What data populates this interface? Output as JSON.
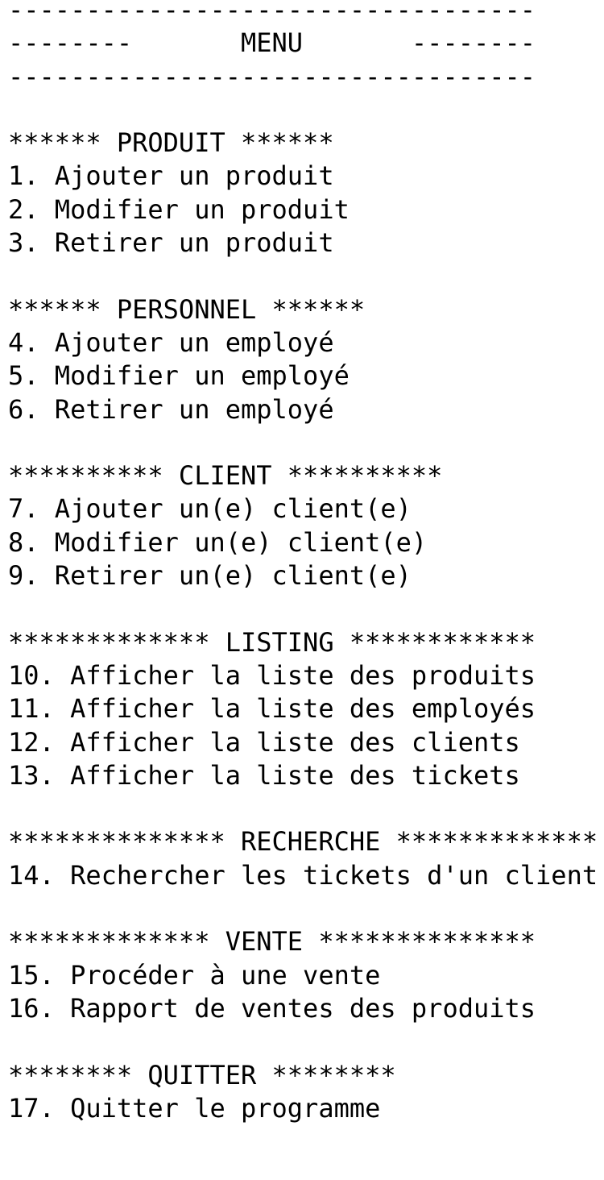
{
  "header": {
    "top_rule": "----------------------------------",
    "title_line": "--------       MENU       --------",
    "bottom_rule": "----------------------------------"
  },
  "sections": [
    {
      "title": "****** PRODUIT ******",
      "items": [
        "1. Ajouter un produit",
        "2. Modifier un produit",
        "3. Retirer un produit"
      ]
    },
    {
      "title": "****** PERSONNEL ******",
      "items": [
        "4. Ajouter un employé",
        "5. Modifier un employé",
        "6. Retirer un employé"
      ]
    },
    {
      "title": "********** CLIENT **********",
      "items": [
        "7. Ajouter un(e) client(e)",
        "8. Modifier un(e) client(e)",
        "9. Retirer un(e) client(e)"
      ]
    },
    {
      "title": "************* LISTING ************",
      "items": [
        "10. Afficher la liste des produits",
        "11. Afficher la liste des employés",
        "12. Afficher la liste des clients",
        "13. Afficher la liste des tickets"
      ]
    },
    {
      "title": "************** RECHERCHE *************",
      "items": [
        "14. Rechercher les tickets d'un client"
      ]
    },
    {
      "title": "************* VENTE **************",
      "items": [
        "15. Procéder à une vente",
        "16. Rapport de ventes des produits"
      ]
    },
    {
      "title": "******** QUITTER ********",
      "items": [
        "17. Quitter le programme"
      ]
    }
  ],
  "footer": {
    "rule": "-----------------------------------"
  }
}
